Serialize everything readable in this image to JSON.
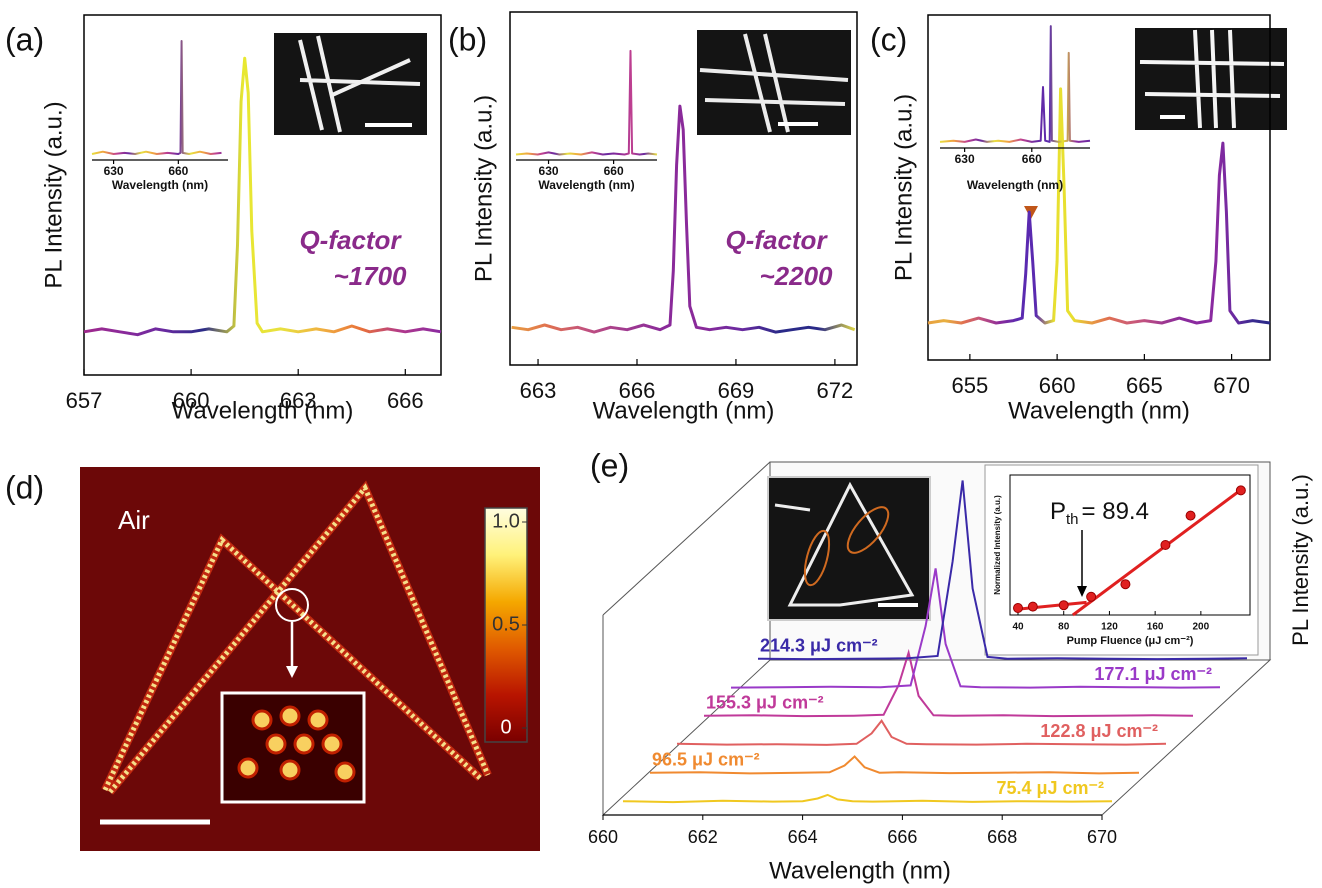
{
  "panels": [
    "(a)",
    "(b)",
    "(c)",
    "(d)",
    "(e)"
  ],
  "chart_data": [
    {
      "type": "line",
      "xlabel": "Wavelength (nm)",
      "ylabel": "PL Intensity (a.u.)",
      "annotations": [
        "Q-factor",
        "~1700"
      ],
      "xlim": [
        657,
        667
      ],
      "ylim": [
        -0.1,
        1.15
      ],
      "xticks": [
        657,
        660,
        663,
        666
      ],
      "x": [
        657,
        657.5,
        658,
        658.5,
        659,
        659.5,
        660,
        660.5,
        661,
        661.2,
        661.3,
        661.4,
        661.5,
        661.6,
        661.7,
        661.85,
        662,
        662.5,
        663,
        663.5,
        664,
        664.5,
        665,
        665.5,
        666,
        666.5,
        667
      ],
      "series": [
        {
          "colors": [
            "#a0288c",
            "#8a2a9a",
            "#6a2aa0",
            "#2a2a88",
            "#e8e830",
            "#e8e040",
            "#f0b040",
            "#e8703a",
            "#b0388c",
            "#8a2aa0"
          ],
          "values": [
            0.05,
            0.06,
            0.05,
            0.04,
            0.06,
            0.05,
            0.05,
            0.06,
            0.05,
            0.07,
            0.35,
            0.85,
            1.0,
            0.88,
            0.4,
            0.08,
            0.05,
            0.06,
            0.05,
            0.06,
            0.05,
            0.07,
            0.05,
            0.06,
            0.05,
            0.06,
            0.05
          ]
        }
      ]
    },
    {
      "type": "line",
      "xlabel": "Wavelength (nm)",
      "xlim": [
        620,
        683
      ],
      "ylim": [
        0,
        1.05
      ],
      "xticks": [
        630,
        660
      ],
      "x": [
        620,
        625,
        630,
        635,
        640,
        645,
        650,
        655,
        660,
        661,
        661.5,
        662,
        665,
        670,
        675,
        680
      ],
      "series": [
        {
          "colors": [
            "#e8e040",
            "#f0a040",
            "#c04090",
            "#6a2aa0",
            "#e8e040",
            "#f0a040",
            "#c04090",
            "#6a2aa0",
            "#e8e040",
            "#f0a040",
            "#c04090",
            "#6a2aa0"
          ],
          "values": [
            0.05,
            0.07,
            0.05,
            0.06,
            0.05,
            0.07,
            0.05,
            0.06,
            0.05,
            0.06,
            1,
            0.06,
            0.05,
            0.07,
            0.05,
            0.06
          ]
        }
      ]
    },
    {
      "type": "line",
      "xlabel": "Wavelength (nm)",
      "ylabel": "PL Intensity (a.u.)",
      "annotations": [
        "Q-factor",
        "~2200"
      ],
      "xlim": [
        662.15,
        672.67
      ],
      "ylim": [
        -0.1,
        1.4
      ],
      "xticks": [
        663,
        666,
        669,
        672
      ],
      "x": [
        662.2,
        662.7,
        663.2,
        663.7,
        664.2,
        664.7,
        665.2,
        665.7,
        666.2,
        666.7,
        667,
        667.1,
        667.2,
        667.3,
        667.4,
        667.5,
        667.6,
        667.8,
        668.2,
        668.7,
        669.2,
        669.7,
        670.2,
        670.7,
        671.2,
        671.7,
        672.2,
        672.6
      ],
      "series": [
        {
          "colors": [
            "#e8a040",
            "#e07050",
            "#c05080",
            "#a03a90",
            "#8a2a9a",
            "#8a2a9a",
            "#6a2aa0",
            "#2a2a88",
            "#2a2a88",
            "#e8e040"
          ],
          "values": [
            0.06,
            0.05,
            0.07,
            0.05,
            0.06,
            0.04,
            0.06,
            0.05,
            0.07,
            0.05,
            0.07,
            0.3,
            0.75,
            1.0,
            0.9,
            0.5,
            0.15,
            0.06,
            0.05,
            0.06,
            0.05,
            0.06,
            0.04,
            0.05,
            0.06,
            0.05,
            0.07,
            0.05
          ]
        }
      ]
    },
    {
      "type": "line",
      "xlabel": "Wavelength (nm)",
      "xlim": [
        615,
        680
      ],
      "ylim": [
        0,
        1.1
      ],
      "xticks": [
        630,
        660
      ],
      "x": [
        615,
        620,
        625,
        630,
        635,
        640,
        645,
        650,
        655,
        660,
        665,
        667,
        667.8,
        668.5,
        672,
        676,
        680
      ],
      "series": [
        {
          "colors": [
            "#e8e040",
            "#f0a040",
            "#c04090",
            "#6a2aa0",
            "#e8e040",
            "#f0a040",
            "#c04090",
            "#6a2aa0",
            "#8a2a9a",
            "#c04090",
            "#6a2aa0",
            "#e8e040"
          ],
          "values": [
            0.05,
            0.06,
            0.05,
            0.07,
            0.05,
            0.06,
            0.05,
            0.07,
            0.05,
            0.06,
            0.05,
            0.06,
            1,
            0.06,
            0.05,
            0.06,
            0.05
          ]
        }
      ]
    },
    {
      "type": "line",
      "xlabel": "Wavelength (nm)",
      "ylabel": "PL Intensity (a.u.)",
      "xlim": [
        652.6,
        672.2
      ],
      "ylim": [
        -0.1,
        1.3
      ],
      "xticks": [
        655,
        660,
        665,
        670
      ],
      "x": [
        652.6,
        653.5,
        654.5,
        655.5,
        656.5,
        657.5,
        658,
        658.2,
        658.4,
        658.6,
        658.8,
        659.3,
        659.8,
        660,
        660.2,
        660.4,
        660.6,
        661,
        662,
        663,
        664,
        665,
        666,
        667,
        668,
        668.8,
        669.1,
        669.3,
        669.5,
        669.7,
        669.9,
        670.4,
        671.2,
        672.2
      ],
      "series": [
        {
          "colors": [
            "#e8a040",
            "#e8b040",
            "#e07050",
            "#c05080",
            "#8a2a9a",
            "#5a2ab0",
            "#5a2ab0",
            "#e8e030",
            "#e8e030",
            "#e8a040",
            "#e07050",
            "#d06070",
            "#c05080",
            "#a03a90",
            "#8a2a9a",
            "#8a2aa0",
            "#8a2aa0",
            "#6a2aa0",
            "#3a2a90",
            "#2a2a88"
          ],
          "values": [
            0.05,
            0.06,
            0.05,
            0.07,
            0.05,
            0.06,
            0.07,
            0.25,
            0.5,
            0.3,
            0.08,
            0.05,
            0.06,
            0.3,
            1.0,
            0.6,
            0.1,
            0.06,
            0.05,
            0.07,
            0.05,
            0.06,
            0.05,
            0.07,
            0.05,
            0.06,
            0.3,
            0.65,
            0.78,
            0.5,
            0.1,
            0.05,
            0.06,
            0.05
          ]
        }
      ]
    },
    {
      "type": "line",
      "xlabel": "Wavelength (nm)",
      "xlim": [
        619,
        686
      ],
      "ylim": [
        0,
        1.05
      ],
      "xticks": [
        630,
        660
      ],
      "x": [
        619,
        625,
        630,
        635,
        640,
        645,
        650,
        655,
        660,
        664,
        665,
        666,
        668,
        668.5,
        669,
        672,
        676,
        676.5,
        677,
        681,
        686
      ],
      "series": [
        {
          "colors": [
            "#e8e040",
            "#f0a040",
            "#c04090",
            "#6a2aa0",
            "#e8e040",
            "#f0a040",
            "#c04090",
            "#6a2aa0",
            "#5a2ab0",
            "#e8e030",
            "#8a2aa0",
            "#6a2aa0"
          ],
          "values": [
            0.05,
            0.06,
            0.05,
            0.07,
            0.05,
            0.06,
            0.05,
            0.07,
            0.05,
            0.06,
            0.5,
            0.06,
            0.05,
            1,
            0.06,
            0.05,
            0.06,
            0.78,
            0.06,
            0.05,
            0.06
          ]
        }
      ]
    },
    {
      "type": "colormap",
      "annotations": [
        "Air"
      ],
      "colorbar": {
        "lim": [
          0,
          1
        ],
        "ticks": [
          0,
          0.5,
          {
            "value": 1,
            "label": "1.0"
          }
        ],
        "colors": [
          "#7a0000",
          "#b81400",
          "#e05a00",
          "#f5a800",
          "#fff27a",
          "#fffde0"
        ]
      }
    },
    {
      "type": "waterfall",
      "xlabel": "Wavelength (nm)",
      "ylabel": "PL Intensity (a.u.)",
      "xlim": [
        660,
        670
      ],
      "xticks": [
        660,
        662,
        664,
        666,
        668,
        670
      ],
      "x": [
        660,
        661,
        662,
        663,
        663.6,
        663.9,
        664.1,
        664.3,
        664.6,
        665,
        666,
        667,
        668,
        669,
        669.8
      ],
      "series": [
        {
          "name": "75.4 μJ cm⁻²",
          "color": "#f0c820",
          "values": [
            0.01,
            0.005,
            0.012,
            0.008,
            0.01,
            0.025,
            0.045,
            0.02,
            0.01,
            0.008,
            0.012,
            0.006,
            0.01,
            0.008,
            0.01
          ]
        },
        {
          "name": "96.5 μJ cm⁻²",
          "color": "#f08a30",
          "values": [
            0.01,
            0.012,
            0.006,
            0.01,
            0.012,
            0.05,
            0.1,
            0.04,
            0.01,
            0.012,
            0.008,
            0.01,
            0.012,
            0.006,
            0.01
          ]
        },
        {
          "name": "122.8 μJ cm⁻²",
          "color": "#e06060",
          "values": [
            0.012,
            0.008,
            0.01,
            0.006,
            0.012,
            0.07,
            0.14,
            0.05,
            0.012,
            0.01,
            0.008,
            0.012,
            0.01,
            0.008,
            0.012
          ]
        },
        {
          "name": "155.3 μJ cm⁻²",
          "color": "#c03a9a",
          "values": [
            0.01,
            0.012,
            0.008,
            0.01,
            0.015,
            0.18,
            0.36,
            0.12,
            0.012,
            0.01,
            0.012,
            0.008,
            0.01,
            0.012,
            0.01
          ]
        },
        {
          "name": "177.1 μJ cm⁻²",
          "color": "#9a3ac8",
          "values": [
            0.008,
            0.01,
            0.012,
            0.01,
            0.02,
            0.35,
            0.67,
            0.25,
            0.015,
            0.01,
            0.008,
            0.012,
            0.01,
            0.008,
            0.01
          ]
        },
        {
          "name": "214.3 μJ cm⁻²",
          "color": "#3a2aa8",
          "values": [
            0.01,
            0.008,
            0.01,
            0.012,
            0.025,
            0.55,
            1.0,
            0.4,
            0.02,
            0.01,
            0.012,
            0.01,
            0.008,
            0.01,
            0.012
          ]
        }
      ]
    },
    {
      "type": "scatter",
      "xlabel": "Pump Fluence (μJ cm⁻²)",
      "ylabel": "Normalized Intensity (a.u.)",
      "xlim": [
        33,
        243
      ],
      "ylim": [
        0,
        1
      ],
      "xticks": [
        40,
        80,
        120,
        160,
        200
      ],
      "color": "#e02020",
      "x": [
        40,
        53,
        80,
        104,
        134,
        169,
        191,
        235
      ],
      "values": [
        0.05,
        0.06,
        0.07,
        0.13,
        0.22,
        0.5,
        0.71,
        0.89
      ],
      "fits": [
        {
          "x": [
            38,
            100
          ],
          "values": [
            0.04,
            0.09
          ]
        },
        {
          "x": [
            88,
            236
          ],
          "values": [
            0,
            0.9
          ]
        }
      ],
      "annotation": {
        "text": "P",
        "sub": "th",
        "value_text": "= 89.4"
      }
    }
  ]
}
